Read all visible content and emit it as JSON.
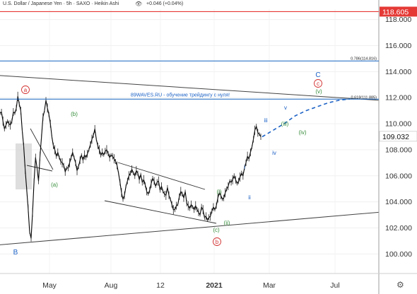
{
  "header": {
    "symbol": "U.S. Dollar / Japanese Yen · 5h · SAXO · Heikin Ashi",
    "change": "+0.046 (+0.04%)",
    "eye_icon": "eye-icon"
  },
  "price_labels": {
    "top_red": "118.605",
    "current": "109.032"
  },
  "fib_labels": {
    "upper": "0.786(114.816)",
    "lower": "0.618(111.885)"
  },
  "watermark_text": "89WAVES.RU - обучение трейдингу с нуля!",
  "wave_labels": {
    "B": "B",
    "C": "C",
    "a_circ": "a",
    "b_circ": "b",
    "c_circ": "c",
    "a_paren": "(a)",
    "b_paren": "(b)",
    "c_paren": "(c)",
    "i_paren": "(i)",
    "ii_paren": "(ii)",
    "iii_paren": "(iii)",
    "iv_paren": "(iv)",
    "v_paren": "(v)",
    "i": "i",
    "ii": "ii",
    "iii": "iii",
    "iv": "iv",
    "v": "v"
  },
  "colors": {
    "candles": "#000000",
    "red_line": "#e53935",
    "blue_line": "#1565c0",
    "green_label": "#388e3c",
    "blue_label": "#1e63c6",
    "red_label": "#d32f2f",
    "projection": "#1e63c6"
  },
  "gear_icon": "gear-icon",
  "chart_data": {
    "type": "line",
    "title": "U.S. Dollar / Japanese Yen · 5h · SAXO · Heikin Ashi",
    "xlabel": "",
    "ylabel": "",
    "ylim": [
      98.0,
      119.4
    ],
    "x_ticks": [
      "May",
      "Aug",
      "12",
      "2021",
      "Mar",
      "Jul"
    ],
    "y_ticks": [
      "100.000",
      "102.000",
      "104.000",
      "106.000",
      "108.000",
      "110.000",
      "112.000",
      "114.000",
      "116.000",
      "118.000"
    ],
    "y_tick_values": [
      100,
      102,
      104,
      106,
      108,
      110,
      112,
      114,
      116,
      118
    ],
    "levels": [
      {
        "value": 118.605,
        "label": "118.605"
      },
      {
        "value": 114.816,
        "label": "0.786(114.816)"
      },
      {
        "value": 111.885,
        "label": "0.618(111.885)"
      }
    ],
    "series": [
      {
        "values": [
          110.8,
          110.9,
          110.2,
          109.6,
          109.9,
          110.2,
          110.0,
          109.9,
          110.2,
          110.9,
          110.8,
          111.2,
          112.1,
          111.5,
          111.0,
          109.5,
          108.3,
          106.5,
          105.0,
          103.5,
          101.7,
          101.2,
          103.2,
          105.6,
          107.4,
          106.6,
          105.6,
          107.5,
          109.0,
          110.5,
          111.0,
          111.8,
          111.2,
          110.7,
          110.0,
          109.0,
          108.3,
          108.0,
          107.5,
          107.8,
          107.4,
          107.1,
          107.0,
          106.8,
          106.3,
          106.6,
          106.6,
          107.0,
          107.4,
          107.8,
          107.4,
          107.0,
          106.4,
          106.7,
          107.2,
          107.6,
          107.2,
          107.6,
          107.4,
          107.7,
          108.0,
          108.4,
          108.8,
          109.1,
          109.6,
          108.8,
          108.3,
          108.0,
          107.6,
          107.8,
          107.6,
          107.9,
          108.0,
          107.7,
          107.4,
          107.6,
          107.5,
          107.3,
          107.1,
          106.8,
          106.2,
          105.5,
          104.7,
          104.2,
          104.5,
          105.2,
          105.6,
          106.0,
          106.2,
          106.5,
          106.2,
          106.0,
          106.4,
          106.2,
          105.7,
          106.1,
          105.5,
          105.7,
          105.3,
          104.8,
          104.6,
          104.9,
          105.4,
          105.8,
          105.6,
          105.2,
          105.5,
          105.6,
          104.9,
          105.2,
          104.8,
          104.6,
          104.5,
          105.1,
          104.5,
          104.2,
          103.8,
          103.4,
          103.4,
          103.7,
          103.8,
          104.4,
          104.8,
          104.6,
          104.3,
          104.8,
          103.9,
          103.7,
          103.5,
          103.8,
          103.6,
          103.4,
          103.7,
          103.4,
          103.2,
          103.0,
          103.6,
          103.4,
          102.8,
          102.9,
          102.6,
          102.8,
          102.9,
          103.3,
          103.6,
          103.4,
          103.7,
          104.3,
          104.7,
          104.5,
          104.2,
          104.3,
          104.7,
          105.0,
          105.2,
          105.6,
          105.5,
          105.7,
          106.0,
          105.7,
          105.4,
          105.6,
          105.9,
          106.2,
          106.0,
          106.6,
          107.0,
          107.5,
          107.3,
          107.8,
          108.2,
          108.8,
          109.5,
          109.8,
          109.3,
          109.2,
          109.0
        ]
      },
      {
        "name": "projection",
        "values": [
          109.0,
          109.5,
          110.0,
          110.6,
          111.0,
          111.3,
          111.6,
          111.8,
          111.9
        ]
      }
    ],
    "trendlines": [
      {
        "name": "upper-triangle-line",
        "from": [
          0,
          113.7
        ],
        "to": [
          1.0,
          111.8
        ]
      },
      {
        "name": "lower-triangle-line",
        "from": [
          0,
          100.7
        ],
        "to": [
          1.0,
          103.2
        ]
      }
    ]
  }
}
